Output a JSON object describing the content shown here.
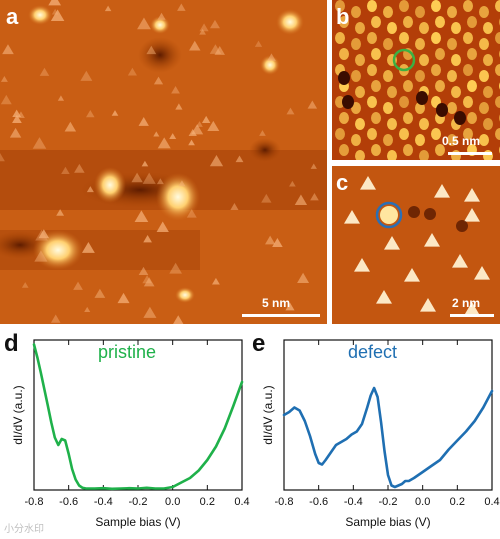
{
  "panels": {
    "a": {
      "label": "a",
      "scalebar": "5 nm",
      "colors": {
        "base": "#c85a10",
        "dark": "#7a2800",
        "bright": "#fff2b0"
      }
    },
    "b": {
      "label": "b",
      "scalebar": "0.5 nm",
      "marker_color": "#3cb043"
    },
    "c": {
      "label": "c",
      "scalebar": "2 nm",
      "marker_color": "#2b6fb5"
    },
    "d": {
      "label": "d"
    },
    "e": {
      "label": "e"
    }
  },
  "watermark": "小分水印",
  "chart_data": [
    {
      "type": "line",
      "panel": "d",
      "series": [
        {
          "name": "pristine",
          "color": "#1fb14a",
          "x": [
            -0.8,
            -0.78,
            -0.76,
            -0.74,
            -0.72,
            -0.7,
            -0.68,
            -0.66,
            -0.64,
            -0.62,
            -0.6,
            -0.58,
            -0.56,
            -0.54,
            -0.52,
            -0.5,
            -0.45,
            -0.4,
            -0.35,
            -0.3,
            -0.25,
            -0.2,
            -0.15,
            -0.1,
            -0.05,
            0.0,
            0.05,
            0.1,
            0.15,
            0.2,
            0.25,
            0.3,
            0.35,
            0.4
          ],
          "y": [
            0.97,
            0.88,
            0.78,
            0.67,
            0.56,
            0.45,
            0.35,
            0.3,
            0.34,
            0.33,
            0.24,
            0.14,
            0.07,
            0.03,
            0.015,
            0.01,
            0.01,
            0.012,
            0.008,
            0.01,
            0.012,
            0.01,
            0.015,
            0.01,
            0.01,
            0.02,
            0.05,
            0.08,
            0.13,
            0.2,
            0.29,
            0.41,
            0.56,
            0.72
          ]
        }
      ],
      "xlabel": "Sample bias (V)",
      "ylabel": "dI/dV (a.u.)",
      "xlim": [
        -0.8,
        0.4
      ],
      "ylim": [
        0,
        1
      ],
      "xticks": [
        -0.8,
        -0.6,
        -0.4,
        -0.2,
        0.0,
        0.2,
        0.4
      ],
      "xtick_labels": [
        "-0.8",
        "-0.6",
        "-0.4",
        "-0.2",
        "0.0",
        "0.2",
        "0.4"
      ]
    },
    {
      "type": "line",
      "panel": "e",
      "series": [
        {
          "name": "defect",
          "color": "#1f6fb2",
          "x": [
            -0.8,
            -0.77,
            -0.74,
            -0.71,
            -0.68,
            -0.65,
            -0.62,
            -0.6,
            -0.58,
            -0.56,
            -0.53,
            -0.5,
            -0.47,
            -0.44,
            -0.41,
            -0.38,
            -0.35,
            -0.32,
            -0.3,
            -0.28,
            -0.26,
            -0.24,
            -0.22,
            -0.2,
            -0.18,
            -0.16,
            -0.14,
            -0.12,
            -0.1,
            -0.08,
            -0.05,
            0.0,
            0.05,
            0.1,
            0.15,
            0.2,
            0.25,
            0.3,
            0.35,
            0.4
          ],
          "y": [
            0.5,
            0.52,
            0.55,
            0.53,
            0.46,
            0.36,
            0.24,
            0.18,
            0.17,
            0.2,
            0.25,
            0.3,
            0.32,
            0.34,
            0.37,
            0.39,
            0.44,
            0.55,
            0.63,
            0.68,
            0.62,
            0.45,
            0.26,
            0.1,
            0.03,
            0.02,
            0.03,
            0.04,
            0.06,
            0.06,
            0.08,
            0.12,
            0.16,
            0.2,
            0.27,
            0.33,
            0.39,
            0.46,
            0.55,
            0.66
          ]
        }
      ],
      "xlabel": "Sample bias (V)",
      "ylabel": "dI/dV (a.u.)",
      "xlim": [
        -0.8,
        0.4
      ],
      "ylim": [
        0,
        1
      ],
      "xticks": [
        -0.8,
        -0.6,
        -0.4,
        -0.2,
        0.0,
        0.2,
        0.4
      ],
      "xtick_labels": [
        "-0.8",
        "-0.6",
        "-0.4",
        "-0.2",
        "0.0",
        "0.2",
        "0.4"
      ]
    }
  ]
}
